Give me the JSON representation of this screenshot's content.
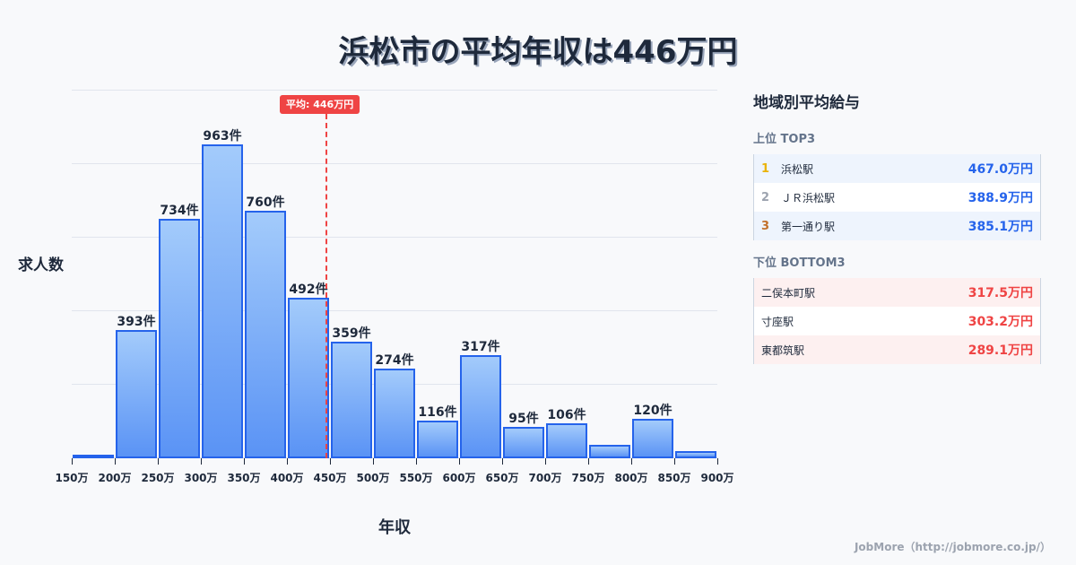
{
  "title": "浜松市の平均年収は446万円",
  "chart_data": {
    "type": "bar",
    "title": "浜松市の平均年収は446万円",
    "xlabel": "年収",
    "ylabel": "求人数",
    "categories": [
      "150-200万",
      "200-250万",
      "250-300万",
      "300-350万",
      "350-400万",
      "400-450万",
      "450-500万",
      "500-550万",
      "550-600万",
      "600-650万",
      "650-700万",
      "700-750万",
      "750-800万",
      "800-850万",
      "850-900万"
    ],
    "values": [
      10,
      393,
      734,
      963,
      760,
      492,
      359,
      274,
      116,
      317,
      95,
      106,
      41,
      120,
      22
    ],
    "bar_labels": [
      "",
      "393件",
      "734件",
      "963件",
      "760件",
      "492件",
      "359件",
      "274件",
      "116件",
      "317件",
      "95件",
      "106件",
      "",
      "120件",
      ""
    ],
    "x_ticks": [
      "150万",
      "200万",
      "250万",
      "300万",
      "350万",
      "400万",
      "450万",
      "500万",
      "550万",
      "600万",
      "650万",
      "700万",
      "750万",
      "800万",
      "850万",
      "900万"
    ],
    "ylim": [
      0,
      1128
    ],
    "grid": true,
    "annotation": {
      "label": "平均: 446万円",
      "x_value": 446
    },
    "colors": {
      "bar_border": "#2563eb",
      "bar_top": "#a3cbfb",
      "bar_bottom": "#5a93f5",
      "avg_line": "#ef4444"
    }
  },
  "panel": {
    "title": "地域別平均給与",
    "top": {
      "title": "上位 TOP3",
      "items": [
        {
          "rank": "1",
          "name": "浜松駅",
          "value": "467.0万円",
          "rank_color": "#eab308"
        },
        {
          "rank": "2",
          "name": "ＪＲ浜松駅",
          "value": "388.9万円",
          "rank_color": "#9ca3af"
        },
        {
          "rank": "3",
          "name": "第一通り駅",
          "value": "385.1万円",
          "rank_color": "#c2702a"
        }
      ]
    },
    "bottom": {
      "title": "下位 BOTTOM3",
      "items": [
        {
          "name": "二俣本町駅",
          "value": "317.5万円"
        },
        {
          "name": "寸座駅",
          "value": "303.2万円"
        },
        {
          "name": "東都筑駅",
          "value": "289.1万円"
        }
      ]
    }
  },
  "footer": "JobMore（http://jobmore.co.jp/）"
}
